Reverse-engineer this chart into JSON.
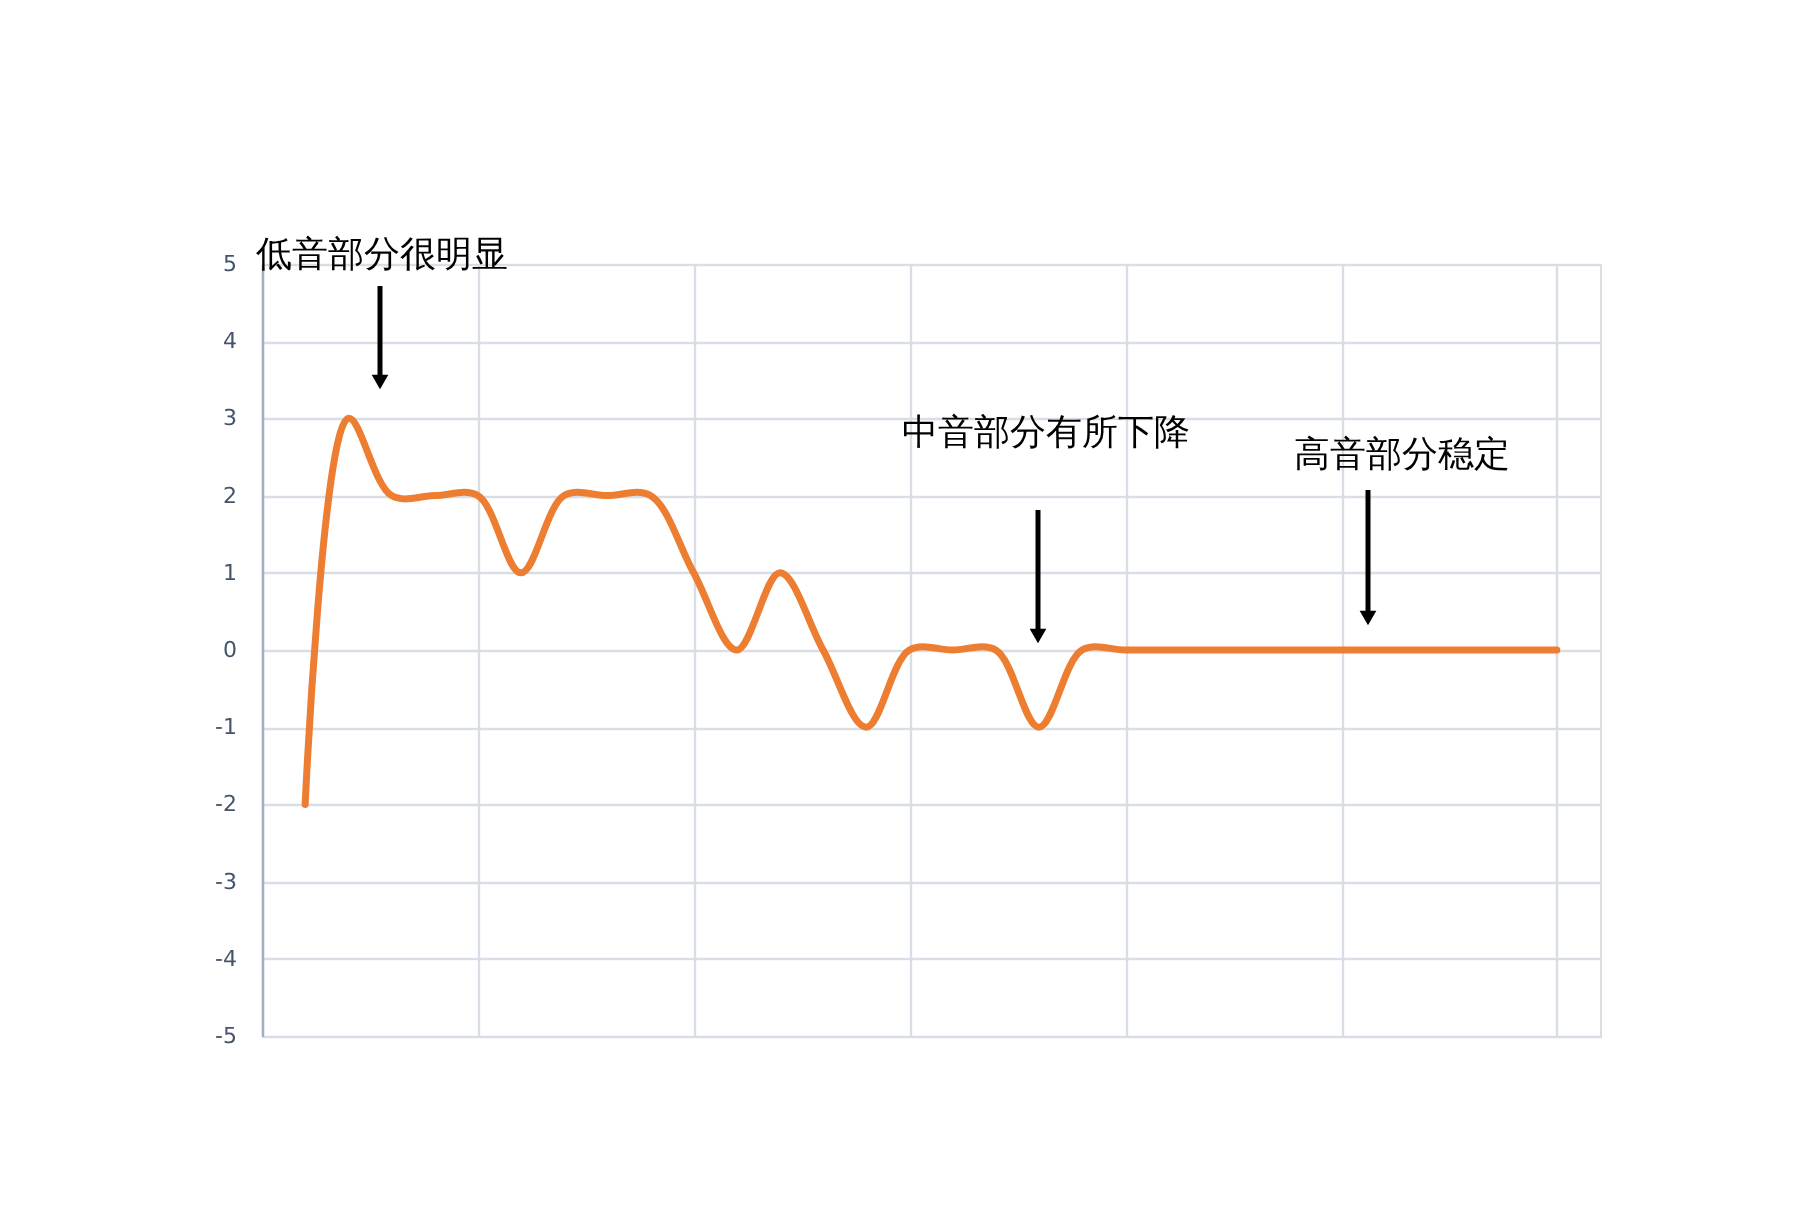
{
  "chart_data": {
    "type": "line",
    "categories": [
      null,
      null,
      null,
      null,
      null,
      null,
      null,
      null,
      null,
      null,
      null,
      null,
      null,
      null,
      null,
      null,
      null,
      null,
      null,
      null,
      null,
      null,
      null,
      null,
      null,
      null,
      null,
      null,
      null,
      null
    ],
    "values": [
      -2,
      3,
      2,
      2,
      2,
      1,
      2,
      2,
      2,
      1,
      0,
      1,
      0,
      -1,
      0,
      0,
      0,
      -1,
      0,
      0,
      0,
      0,
      0,
      0,
      0,
      0,
      0,
      0,
      0,
      0
    ],
    "color": "#ed7d31",
    "ylim": [
      -5,
      5
    ],
    "yticks": [
      -5,
      -4,
      -3,
      -2,
      -1,
      0,
      1,
      2,
      3,
      4,
      5
    ],
    "grid": true,
    "tick_labels": "y",
    "annotations": [
      "低音部分很明显",
      "中音部分有所下降",
      "高音部分稳定"
    ]
  }
}
